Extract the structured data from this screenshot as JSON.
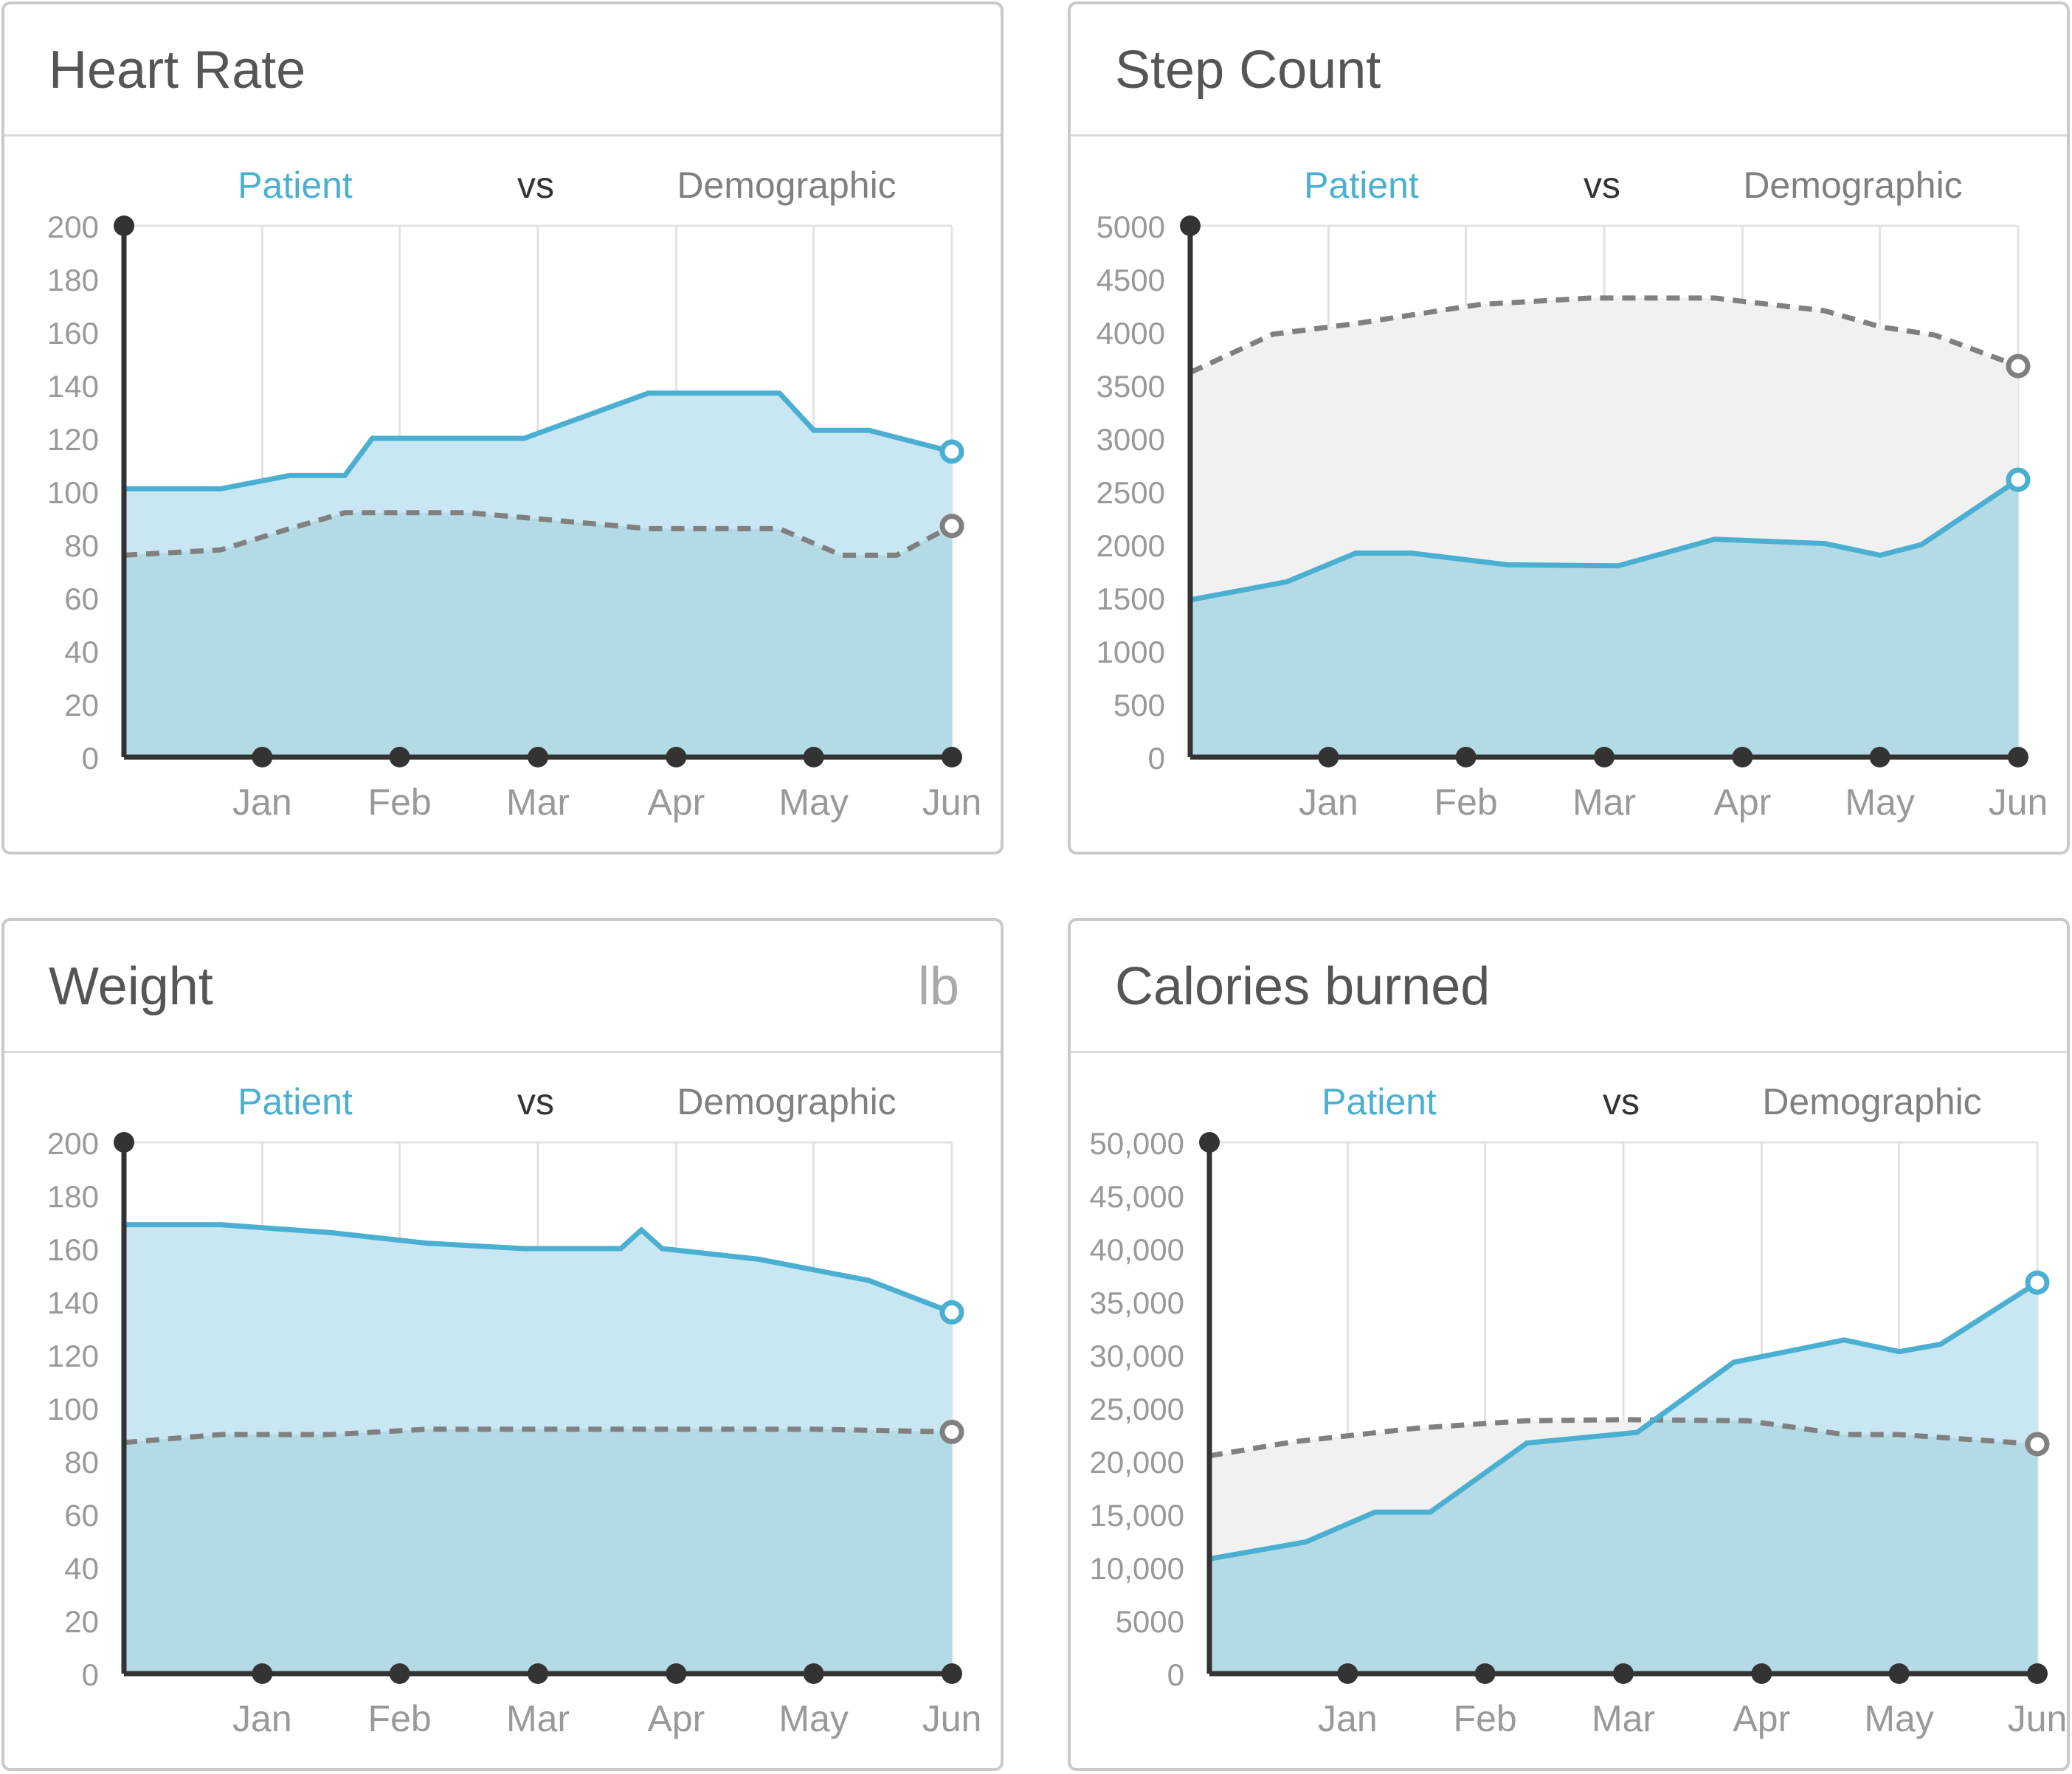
{
  "charts": [
    {
      "title": "Heart Rate",
      "unit": "",
      "legend": {
        "patient": "Patient",
        "vs": "vs",
        "demographic": "Demographic"
      }
    },
    {
      "title": "Step Count",
      "unit": "",
      "legend": {
        "patient": "Patient",
        "vs": "vs",
        "demographic": "Demographic"
      }
    },
    {
      "title": "Weight",
      "unit": "lb",
      "legend": {
        "patient": "Patient",
        "vs": "vs",
        "demographic": "Demographic"
      }
    },
    {
      "title": "Calories burned",
      "unit": "",
      "legend": {
        "patient": "Patient",
        "vs": "vs",
        "demographic": "Demographic"
      }
    }
  ],
  "colors": {
    "patient": "#4aafd0",
    "patient_fill": "#c9e7f2",
    "demographic": "#808080",
    "demographic_fill": "#f1f1f1",
    "overlap_fill": "#c1e0e8",
    "axis": "#333333",
    "grid": "#e3e3e3",
    "tick_label": "#999999"
  },
  "chart_data": [
    {
      "type": "area",
      "title": "Heart Rate",
      "ylim": [
        0,
        200
      ],
      "yticks": [
        "0",
        "20",
        "40",
        "60",
        "80",
        "100",
        "120",
        "140",
        "160",
        "180",
        "200"
      ],
      "ytick_values": [
        0,
        20,
        40,
        60,
        80,
        100,
        120,
        140,
        160,
        180,
        200
      ],
      "categories": [
        "Jan",
        "Feb",
        "Mar",
        "Apr",
        "May",
        "Jun"
      ],
      "grid": true,
      "legend_position": "top",
      "series": [
        {
          "name": "Patient",
          "style": "solid",
          "x": [
            0,
            0.7,
            1.2,
            1.6,
            1.8,
            2.9,
            3.8,
            4.75,
            5.0,
            5.4,
            6.0
          ],
          "y": [
            101,
            101,
            106,
            106,
            120,
            120,
            137,
            137,
            123,
            123,
            115
          ]
        },
        {
          "name": "Demographic",
          "style": "dashed",
          "x": [
            0,
            0.7,
            1.2,
            1.6,
            2.5,
            3.8,
            4.75,
            5.2,
            5.6,
            6.0
          ],
          "y": [
            76,
            78,
            86,
            92,
            92,
            86,
            86,
            76,
            76,
            87
          ]
        }
      ]
    },
    {
      "type": "area",
      "title": "Step Count",
      "ylim": [
        0,
        5000
      ],
      "yticks": [
        "0",
        "500",
        "1000",
        "1500",
        "2000",
        "2500",
        "3000",
        "3500",
        "4000",
        "4500",
        "5000"
      ],
      "ytick_values": [
        0,
        500,
        1000,
        1500,
        2000,
        2500,
        3000,
        3500,
        4000,
        4500,
        5000
      ],
      "categories": [
        "Jan",
        "Feb",
        "Mar",
        "Apr",
        "May",
        "Jun"
      ],
      "grid": true,
      "legend_position": "top",
      "series": [
        {
          "name": "Patient",
          "style": "solid",
          "x": [
            0,
            0.7,
            1.2,
            1.6,
            2.3,
            3.1,
            3.8,
            4.6,
            5.0,
            5.3,
            6.0
          ],
          "y": [
            1480,
            1650,
            1920,
            1920,
            1810,
            1800,
            2050,
            2010,
            1900,
            2000,
            2610
          ]
        },
        {
          "name": "Demographic",
          "style": "dashed",
          "x": [
            0,
            0.6,
            1.2,
            2.1,
            2.9,
            3.8,
            4.6,
            5.0,
            5.4,
            6.0
          ],
          "y": [
            3620,
            3980,
            4080,
            4260,
            4320,
            4320,
            4200,
            4050,
            3970,
            3680
          ]
        }
      ]
    },
    {
      "type": "area",
      "title": "Weight",
      "ylim": [
        0,
        200
      ],
      "yticks": [
        "0",
        "20",
        "40",
        "60",
        "80",
        "100",
        "120",
        "140",
        "160",
        "180",
        "200"
      ],
      "ytick_values": [
        0,
        20,
        40,
        60,
        80,
        100,
        120,
        140,
        160,
        180,
        200
      ],
      "categories": [
        "Jan",
        "Feb",
        "Mar",
        "Apr",
        "May",
        "Jun"
      ],
      "grid": true,
      "legend_position": "top",
      "series": [
        {
          "name": "Patient",
          "style": "solid",
          "x": [
            0,
            0.7,
            1.5,
            2.2,
            2.9,
            3.6,
            3.75,
            3.9,
            4.6,
            5.0,
            5.4,
            6.0
          ],
          "y": [
            169,
            169,
            166,
            162,
            160,
            160,
            167,
            160,
            156,
            152,
            148,
            136
          ]
        },
        {
          "name": "Demographic",
          "style": "dashed",
          "x": [
            0,
            0.7,
            1.5,
            2.2,
            3.0,
            4.0,
            5.0,
            6.0
          ],
          "y": [
            87,
            90,
            90,
            92,
            92,
            92,
            92,
            91
          ]
        }
      ]
    },
    {
      "type": "area",
      "title": "Calories burned",
      "ylim": [
        0,
        50000
      ],
      "yticks": [
        "0",
        "5000",
        "10,000",
        "15,000",
        "20,000",
        "25,000",
        "30,000",
        "35,000",
        "40,000",
        "45,000",
        "50,000"
      ],
      "ytick_values": [
        0,
        5000,
        10000,
        15000,
        20000,
        25000,
        30000,
        35000,
        40000,
        45000,
        50000
      ],
      "categories": [
        "Jan",
        "Feb",
        "Mar",
        "Apr",
        "May",
        "Jun"
      ],
      "grid": true,
      "legend_position": "top",
      "series": [
        {
          "name": "Patient",
          "style": "solid",
          "x": [
            0,
            0.7,
            1.2,
            1.6,
            2.3,
            3.1,
            3.8,
            4.6,
            5.0,
            5.3,
            6.0
          ],
          "y": [
            10800,
            12400,
            15200,
            15200,
            21700,
            22700,
            29300,
            31400,
            30300,
            31000,
            36800
          ]
        },
        {
          "name": "Demographic",
          "style": "dashed",
          "x": [
            0,
            0.6,
            1.5,
            2.3,
            3.0,
            3.9,
            4.6,
            5.0,
            6.0
          ],
          "y": [
            20500,
            21800,
            23100,
            23800,
            23900,
            23800,
            22500,
            22500,
            21600
          ]
        }
      ]
    }
  ]
}
